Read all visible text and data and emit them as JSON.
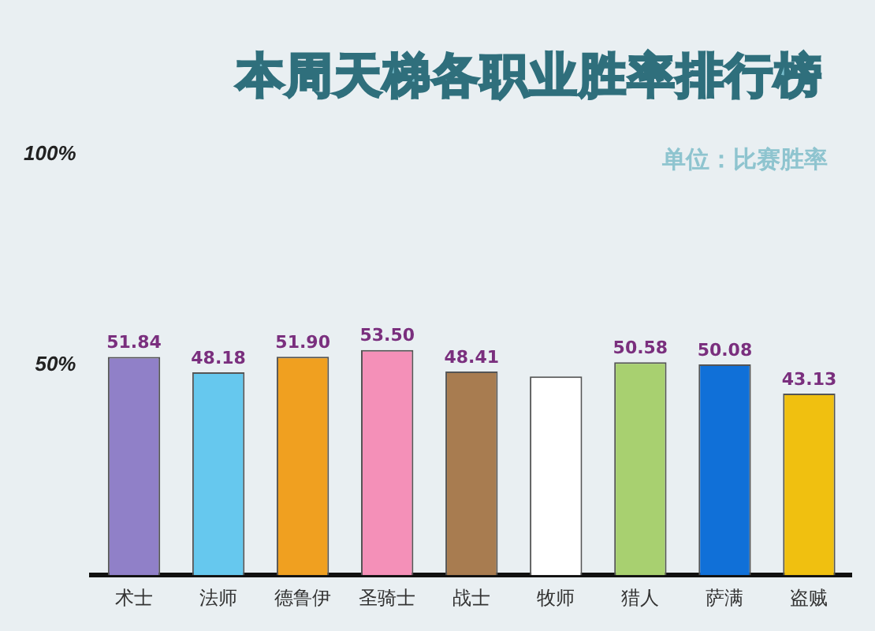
{
  "chart_data": {
    "type": "bar",
    "title": "本周天梯各职业胜率排行榜",
    "annotations": [
      "单位：比赛胜率"
    ],
    "categories": [
      "术士",
      "法师",
      "德鲁伊",
      "圣骑士",
      "战士",
      "牧师",
      "猎人",
      "萨满",
      "盗贼"
    ],
    "values": [
      51.84,
      48.18,
      51.9,
      53.5,
      48.41,
      47.2,
      50.58,
      50.08,
      43.13
    ],
    "value_labels": [
      "51.84",
      "48.18",
      "51.90",
      "53.50",
      "48.41",
      null,
      "50.58",
      "50.08",
      "43.13"
    ],
    "colors": [
      "#9080c8",
      "#66c8ee",
      "#f0a020",
      "#f490b8",
      "#a87c50",
      "#ffffff",
      "#a8d070",
      "#1070d8",
      "#f0c010"
    ],
    "ylim": [
      0,
      100
    ],
    "yticks": [
      {
        "value": 50,
        "label": "50%"
      },
      {
        "value": 100,
        "label": "100%"
      }
    ],
    "grid": false,
    "legend": false
  }
}
